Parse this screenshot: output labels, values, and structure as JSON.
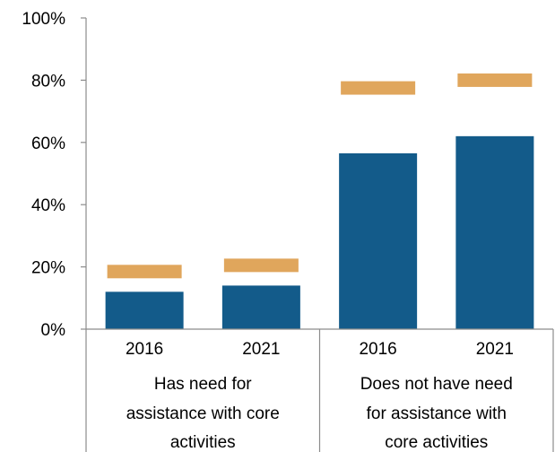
{
  "chart_data": {
    "type": "bar",
    "categories": [
      "2016",
      "2021",
      "2016",
      "2021"
    ],
    "groups": [
      {
        "label_lines": [
          "Has need for",
          "assistance with core",
          "activities"
        ],
        "span": [
          0,
          1
        ]
      },
      {
        "label_lines": [
          "Does not have need",
          "for assistance with",
          "core activities"
        ],
        "span": [
          2,
          3
        ]
      }
    ],
    "series": [
      {
        "values": [
          12,
          14,
          56.5,
          62
        ],
        "color": "#135B8A",
        "style": "bar"
      },
      {
        "values": [
          18.5,
          20.5,
          77.5,
          80
        ],
        "color": "#E0A65C",
        "style": "marker-dash"
      }
    ],
    "yticks": [
      "0%",
      "20%",
      "40%",
      "60%",
      "80%",
      "100%"
    ],
    "ylim": [
      0,
      100
    ],
    "grid": false
  }
}
